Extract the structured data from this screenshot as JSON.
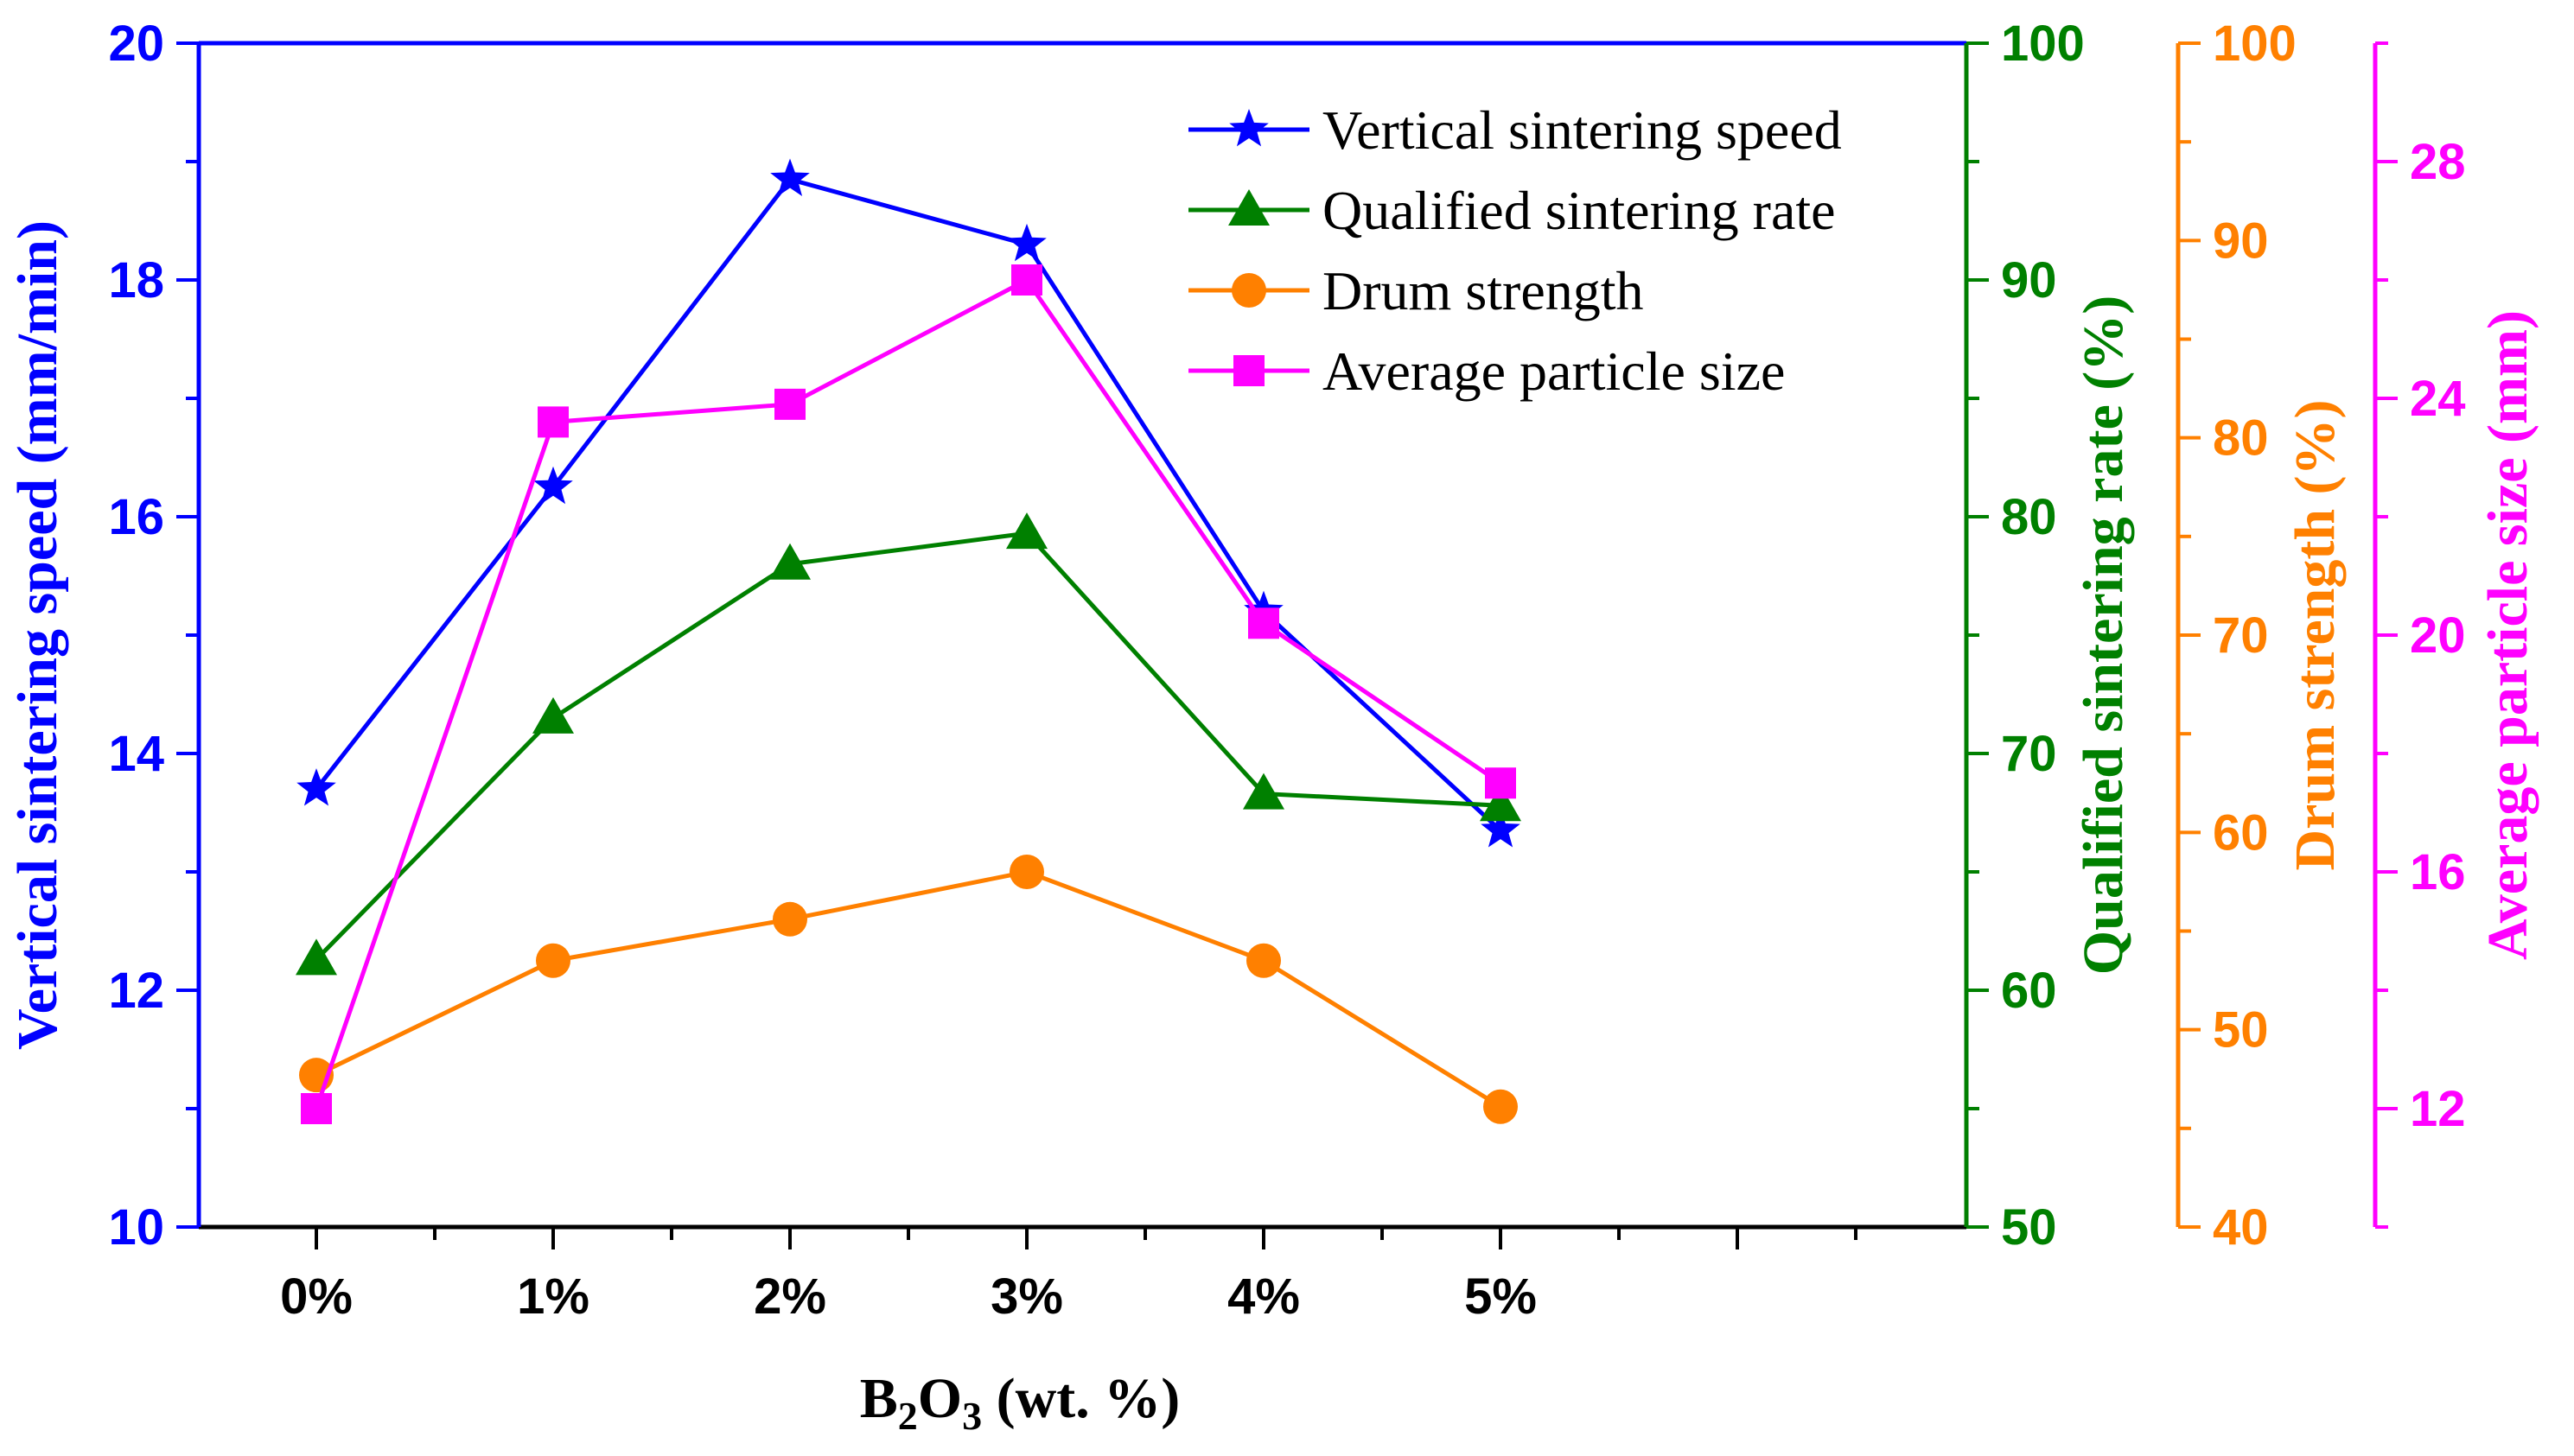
{
  "chart_data": {
    "type": "line",
    "categories": [
      "0%",
      "1%",
      "2%",
      "3%",
      "4%",
      "5%"
    ],
    "xlabel": {
      "prefix": "B",
      "sub1": "2",
      "mid": "O",
      "sub2": "3",
      "suffix": " (wt. %)"
    },
    "axes": [
      {
        "id": "speed",
        "label": "Vertical sintering speed (mm/min)",
        "color": "#0000ff",
        "ylim": [
          10,
          20
        ],
        "ticks": [
          10,
          12,
          14,
          16,
          18,
          20
        ],
        "position": "left"
      },
      {
        "id": "rate",
        "label": "Qualified sintering rate (%)",
        "color": "#008000",
        "ylim": [
          50,
          100
        ],
        "ticks": [
          50,
          60,
          70,
          80,
          90,
          100
        ],
        "position": "right-1"
      },
      {
        "id": "drum",
        "label": "Drum strength (%)",
        "color": "#ff8000",
        "ylim": [
          40,
          100
        ],
        "ticks": [
          40,
          50,
          60,
          70,
          80,
          90,
          100
        ],
        "position": "right-2"
      },
      {
        "id": "size",
        "label": "Average particle size (mm)",
        "color": "#ff00ff",
        "ylim": [
          10,
          30
        ],
        "ticks": [
          12,
          16,
          20,
          24,
          28
        ],
        "position": "right-3"
      }
    ],
    "series": [
      {
        "name": "Vertical sintering speed",
        "axis": "speed",
        "color": "#0000ff",
        "marker": "star",
        "values": [
          13.7,
          16.25,
          18.85,
          18.3,
          15.2,
          13.35
        ]
      },
      {
        "name": "Qualified sintering rate",
        "axis": "rate",
        "color": "#008000",
        "marker": "triangle",
        "values": [
          61.3,
          71.5,
          78.0,
          79.3,
          68.3,
          67.8
        ]
      },
      {
        "name": "Drum strength",
        "axis": "drum",
        "color": "#ff8000",
        "marker": "circle",
        "values": [
          47.7,
          53.5,
          55.6,
          58.0,
          53.5,
          46.1
        ]
      },
      {
        "name": "Average particle size",
        "axis": "size",
        "color": "#ff00ff",
        "marker": "square",
        "values": [
          12.0,
          23.6,
          23.9,
          26.0,
          20.2,
          17.5
        ]
      }
    ],
    "legend_position": "top-right"
  }
}
